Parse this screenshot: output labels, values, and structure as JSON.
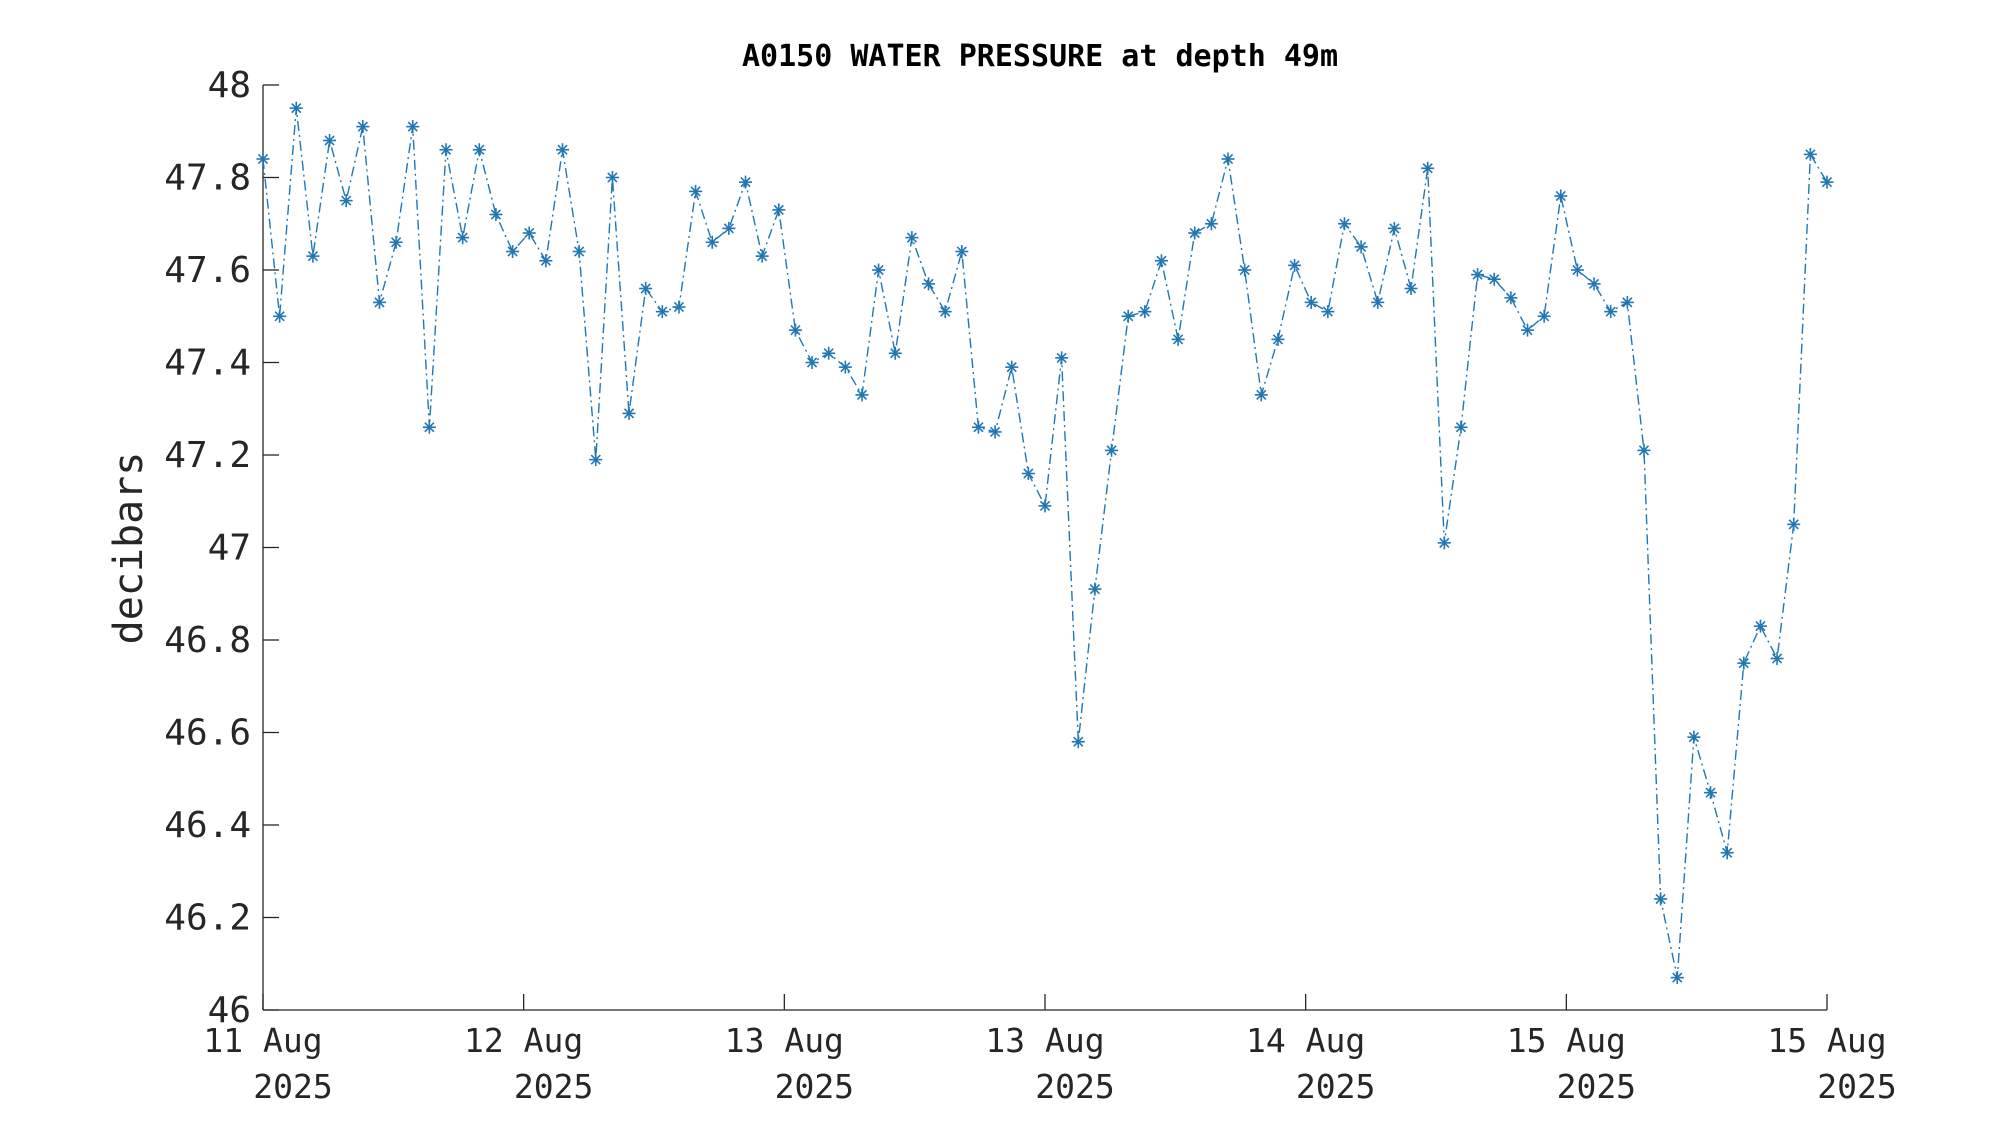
{
  "chart_data": {
    "type": "line",
    "title": "A0150 WATER PRESSURE at depth 49m",
    "xlabel": "",
    "ylabel": "decibars",
    "ylim": [
      46,
      48
    ],
    "yticks": [
      "46",
      "46.2",
      "46.4",
      "46.6",
      "46.8",
      "47",
      "47.2",
      "47.4",
      "47.6",
      "47.8",
      "48"
    ],
    "x_range": [
      0,
      96
    ],
    "x_ticks": [
      {
        "x": 0,
        "day": "11 Aug",
        "year": "2025"
      },
      {
        "x": 16,
        "day": "12 Aug",
        "year": "2025"
      },
      {
        "x": 32,
        "day": "13 Aug",
        "year": "2025"
      },
      {
        "x": 48,
        "day": "13 Aug",
        "year": "2025"
      },
      {
        "x": 64,
        "day": "14 Aug",
        "year": "2025"
      },
      {
        "x": 80,
        "day": "15 Aug",
        "year": "2025"
      },
      {
        "x": 96,
        "day": "15 Aug",
        "year": "2025"
      }
    ],
    "grid": false,
    "line_style": "dash-dot",
    "marker": "asterisk",
    "color": "#1f77b4",
    "series": [
      {
        "values": [
          47.84,
          47.5,
          47.95,
          47.63,
          47.88,
          47.75,
          47.91,
          47.53,
          47.66,
          47.91,
          47.26,
          47.86,
          47.67,
          47.86,
          47.72,
          47.64,
          47.68,
          47.62,
          47.86,
          47.64,
          47.19,
          47.8,
          47.29,
          47.56,
          47.51,
          47.52,
          47.77,
          47.66,
          47.69,
          47.79,
          47.63,
          47.73,
          47.47,
          47.4,
          47.42,
          47.39,
          47.33,
          47.6,
          47.42,
          47.67,
          47.57,
          47.51,
          47.64,
          47.26,
          47.25,
          47.39,
          47.16,
          47.09,
          47.41,
          46.58,
          46.91,
          47.21,
          47.5,
          47.51,
          47.62,
          47.45,
          47.68,
          47.7,
          47.84,
          47.6,
          47.33,
          47.45,
          47.61,
          47.53,
          47.51,
          47.7,
          47.65,
          47.53,
          47.69,
          47.56,
          47.82,
          47.01,
          47.26,
          47.59,
          47.58,
          47.54,
          47.47,
          47.5,
          47.76,
          47.6,
          47.57,
          47.51,
          47.53,
          47.21,
          46.24,
          46.07,
          46.59,
          46.47,
          46.34,
          46.75,
          46.83,
          46.76,
          47.05,
          47.85,
          47.79
        ]
      }
    ]
  }
}
